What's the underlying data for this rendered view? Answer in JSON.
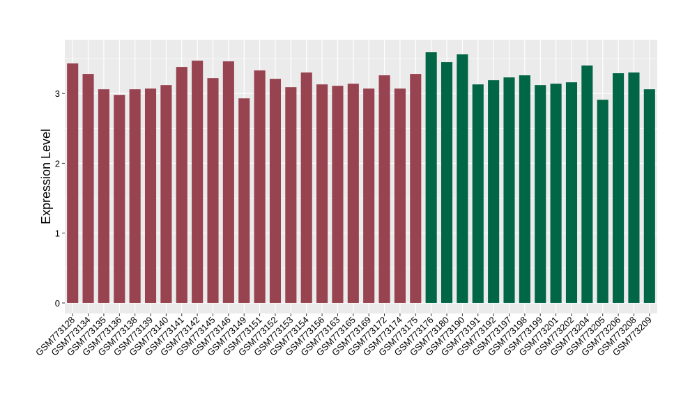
{
  "chart_data": {
    "type": "bar",
    "xlabel": "",
    "ylabel": "Expression Level",
    "ylim": [
      -0.15,
      3.77
    ],
    "yticks": [
      0,
      1,
      2,
      3
    ],
    "grid": true,
    "legend": "none",
    "categories": [
      "GSM773128",
      "GSM773134",
      "GSM773135",
      "GSM773136",
      "GSM773138",
      "GSM773139",
      "GSM773140",
      "GSM773141",
      "GSM773142",
      "GSM773145",
      "GSM773146",
      "GSM773149",
      "GSM773151",
      "GSM773152",
      "GSM773153",
      "GSM773154",
      "GSM773156",
      "GSM773163",
      "GSM773165",
      "GSM773169",
      "GSM773172",
      "GSM773174",
      "GSM773175",
      "GSM773176",
      "GSM773180",
      "GSM773190",
      "GSM773191",
      "GSM773192",
      "GSM773197",
      "GSM773198",
      "GSM773199",
      "GSM773201",
      "GSM773202",
      "GSM773204",
      "GSM773205",
      "GSM773206",
      "GSM773208",
      "GSM773209"
    ],
    "values": [
      3.43,
      3.28,
      3.06,
      2.98,
      3.06,
      3.07,
      3.12,
      3.38,
      3.47,
      3.22,
      3.46,
      2.93,
      3.33,
      3.21,
      3.09,
      3.3,
      3.13,
      3.11,
      3.14,
      3.07,
      3.26,
      3.07,
      3.28,
      3.59,
      3.45,
      3.56,
      3.13,
      3.19,
      3.23,
      3.26,
      3.12,
      3.14,
      3.16,
      3.4,
      2.91,
      3.29,
      3.3,
      3.06
    ],
    "group_colors": [
      "#984350",
      "#016645"
    ],
    "group_split_index": 23,
    "panel_background": "#ebebeb",
    "grid_color": "#ffffff"
  }
}
